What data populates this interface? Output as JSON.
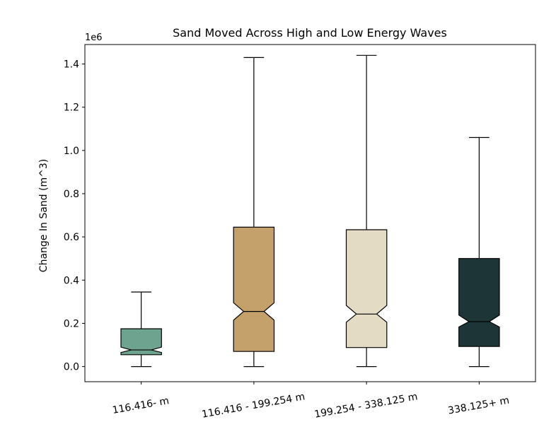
{
  "chart_data": {
    "type": "box",
    "title": "Sand Moved Across High and Low Energy Waves",
    "xlabel": "",
    "ylabel": "Change In Sand (m^3)",
    "offset_label": "1e6",
    "ylim": [
      -0.07,
      1.49
    ],
    "yticks": [
      0.0,
      0.2,
      0.4,
      0.6,
      0.8,
      1.0,
      1.2,
      1.4
    ],
    "ytick_labels": [
      "0.0",
      "0.2",
      "0.4",
      "0.6",
      "0.8",
      "1.0",
      "1.2",
      "1.4"
    ],
    "grid": false,
    "notched": true,
    "categories": [
      "116.416- m",
      "116.416 - 199.254 m",
      "199.254 - 338.125 m",
      "338.125+ m"
    ],
    "boxes": [
      {
        "label": "116.416- m",
        "whisker_low": 0.0,
        "q1": 0.055,
        "median": 0.077,
        "q3": 0.175,
        "whisker_high": 0.345,
        "notch_low": 0.065,
        "notch_high": 0.09,
        "color": "#6ea38f"
      },
      {
        "label": "116.416 - 199.254 m",
        "whisker_low": 0.0,
        "q1": 0.07,
        "median": 0.255,
        "q3": 0.645,
        "whisker_high": 1.43,
        "notch_low": 0.215,
        "notch_high": 0.295,
        "color": "#c4a06a"
      },
      {
        "label": "199.254 - 338.125 m",
        "whisker_low": 0.0,
        "q1": 0.088,
        "median": 0.243,
        "q3": 0.633,
        "whisker_high": 1.44,
        "notch_low": 0.205,
        "notch_high": 0.283,
        "color": "#e3dbc3"
      },
      {
        "label": "338.125+ m",
        "whisker_low": 0.0,
        "q1": 0.093,
        "median": 0.208,
        "q3": 0.5,
        "whisker_high": 1.06,
        "notch_low": 0.183,
        "notch_high": 0.238,
        "color": "#1d3537"
      }
    ]
  }
}
